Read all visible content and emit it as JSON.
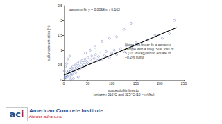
{
  "chart_data": {
    "type": "scatter",
    "x_label": "susceptibility loss Δχ\nbetween 310°C and 325°C (10⁻⁸ m³/kg)",
    "y_label": "sulfur concentration (%)",
    "annotations": [
      "concrete fit: y = 0.0068 x + 0.162",
      "Using this linear fit: a concrete\nsample with a mag. Sus. loss of\n5 (10⁻⁸m³/kg) would equate to\n~0.2% sulfur"
    ],
    "xlim": [
      0,
      250
    ],
    "xticks": [
      0,
      50,
      100,
      150,
      200,
      250
    ],
    "ylim": [
      0,
      2.5
    ],
    "yticks": [
      0,
      0.5,
      1,
      1.5,
      2,
      2.5
    ],
    "grid": false,
    "series": [
      {
        "type": "scatter",
        "color": "#5b6fb5",
        "marker": "circle",
        "x": [
          2,
          3,
          4,
          5,
          6,
          7,
          8,
          9,
          10,
          11,
          12,
          13,
          14,
          15,
          16,
          17,
          18,
          19,
          20,
          22,
          24,
          25,
          26,
          28,
          30,
          31,
          33,
          35,
          36,
          38,
          40,
          42,
          44,
          46,
          48,
          50,
          52,
          55,
          58,
          60,
          63,
          66,
          70,
          72,
          75,
          80,
          85,
          88,
          95,
          100,
          105,
          110,
          118,
          125,
          130,
          140,
          150,
          160,
          175,
          190,
          205,
          220,
          1,
          3,
          6,
          8,
          12,
          15,
          20,
          30,
          45,
          55,
          65,
          80,
          95,
          110,
          125,
          140,
          230
        ],
        "values": [
          0.05,
          0.1,
          0.15,
          0.08,
          0.2,
          0.12,
          0.25,
          0.18,
          0.3,
          0.22,
          0.1,
          0.35,
          0.28,
          0.15,
          0.4,
          0.32,
          0.2,
          0.45,
          0.3,
          0.38,
          0.5,
          0.25,
          0.42,
          0.55,
          0.35,
          0.48,
          0.6,
          0.4,
          0.52,
          0.65,
          0.45,
          0.58,
          0.7,
          0.5,
          0.62,
          0.75,
          0.55,
          0.68,
          0.8,
          0.6,
          0.72,
          0.85,
          0.65,
          0.78,
          0.9,
          0.7,
          0.82,
          0.95,
          0.75,
          0.9,
          1.0,
          0.85,
          1.05,
          0.95,
          1.15,
          1.1,
          1.25,
          1.2,
          1.35,
          1.5,
          1.4,
          1.55,
          0.3,
          0.45,
          0.55,
          0.7,
          0.8,
          0.02,
          0.05,
          0.1,
          0.9,
          1.0,
          1.1,
          1.3,
          1.4,
          1.45,
          1.7,
          1.9,
          2.0
        ]
      },
      {
        "type": "line",
        "color": "#000000",
        "line_style": "solid",
        "x": [
          0,
          235
        ],
        "values": [
          0.162,
          1.76
        ]
      }
    ]
  },
  "footer": {
    "logo": [
      "ac",
      "i"
    ],
    "name": "American Concrete Institute",
    "tagline": "Always advancing"
  }
}
